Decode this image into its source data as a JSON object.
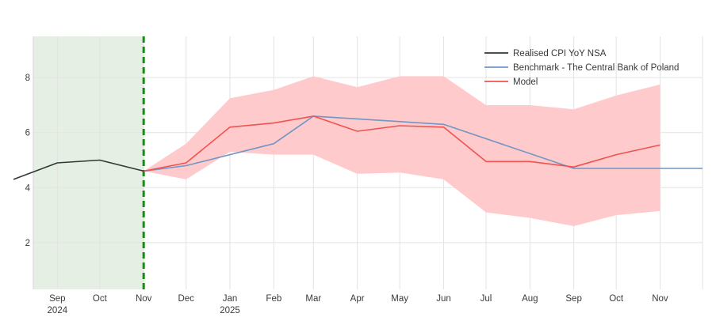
{
  "chart_data": {
    "type": "line",
    "title": "",
    "xlabel": "",
    "ylabel": "",
    "ylim": [
      0.3,
      9.5
    ],
    "yticks": [
      2,
      4,
      6,
      8
    ],
    "grid": true,
    "legend_position": "top-right",
    "x": [
      "2024-08",
      "2024-09",
      "2024-10",
      "2024-11",
      "2024-12",
      "2025-01",
      "2025-02",
      "2025-03",
      "2025-04",
      "2025-05",
      "2025-06",
      "2025-07",
      "2025-08",
      "2025-09",
      "2025-10",
      "2025-11",
      "2025-12"
    ],
    "month_ticks": [
      {
        "month": "2024-09",
        "label": "Sep",
        "year": "2024"
      },
      {
        "month": "2024-10",
        "label": "Oct",
        "year": ""
      },
      {
        "month": "2024-11",
        "label": "Nov",
        "year": ""
      },
      {
        "month": "2024-12",
        "label": "Dec",
        "year": ""
      },
      {
        "month": "2025-01",
        "label": "Jan",
        "year": "2025"
      },
      {
        "month": "2025-02",
        "label": "Feb",
        "year": ""
      },
      {
        "month": "2025-03",
        "label": "Mar",
        "year": ""
      },
      {
        "month": "2025-04",
        "label": "Apr",
        "year": ""
      },
      {
        "month": "2025-05",
        "label": "May",
        "year": ""
      },
      {
        "month": "2025-06",
        "label": "Jun",
        "year": ""
      },
      {
        "month": "2025-07",
        "label": "Jul",
        "year": ""
      },
      {
        "month": "2025-08",
        "label": "Aug",
        "year": ""
      },
      {
        "month": "2025-09",
        "label": "Sep",
        "year": ""
      },
      {
        "month": "2025-10",
        "label": "Oct",
        "year": ""
      },
      {
        "month": "2025-11",
        "label": "Nov",
        "year": ""
      }
    ],
    "shaded_region": {
      "from": "2024-08",
      "to": "2024-11",
      "color": "#e6efe3"
    },
    "forecast_start_marker": {
      "at": "2024-11",
      "color": "#1a8a1a",
      "style": "dashed"
    },
    "series": [
      {
        "name": "Realised CPI YoY NSA",
        "color": "#2f3a36",
        "points": [
          [
            "2024-08",
            4.3
          ],
          [
            "2024-09",
            4.9
          ],
          [
            "2024-10",
            5.0
          ],
          [
            "2024-11",
            4.6
          ]
        ]
      },
      {
        "name": "Benchmark - The Central Bank of Poland",
        "color": "#6f96c4",
        "points": [
          [
            "2024-11",
            4.6
          ],
          [
            "2024-12",
            4.8
          ],
          [
            "2025-02",
            5.6
          ],
          [
            "2025-03",
            6.6
          ],
          [
            "2025-06",
            6.3
          ],
          [
            "2025-09",
            4.7
          ],
          [
            "2025-12",
            4.7
          ]
        ]
      },
      {
        "name": "Model",
        "color": "#ef5350",
        "points": [
          [
            "2024-11",
            4.6
          ],
          [
            "2024-12",
            4.9
          ],
          [
            "2025-01",
            6.2
          ],
          [
            "2025-02",
            6.35
          ],
          [
            "2025-03",
            6.6
          ],
          [
            "2025-04",
            6.05
          ],
          [
            "2025-05",
            6.25
          ],
          [
            "2025-06",
            6.2
          ],
          [
            "2025-07",
            4.95
          ],
          [
            "2025-08",
            4.95
          ],
          [
            "2025-09",
            4.75
          ],
          [
            "2025-10",
            5.2
          ],
          [
            "2025-11",
            5.55
          ]
        ]
      }
    ],
    "band": {
      "name": "Model interval",
      "color": "#ffc7c9",
      "upper": [
        [
          "2024-11",
          4.6
        ],
        [
          "2024-12",
          5.6
        ],
        [
          "2025-01",
          7.25
        ],
        [
          "2025-02",
          7.55
        ],
        [
          "2025-03",
          8.05
        ],
        [
          "2025-04",
          7.65
        ],
        [
          "2025-05",
          8.05
        ],
        [
          "2025-06",
          8.05
        ],
        [
          "2025-07",
          7.0
        ],
        [
          "2025-08",
          7.0
        ],
        [
          "2025-09",
          6.85
        ],
        [
          "2025-10",
          7.35
        ],
        [
          "2025-11",
          7.75
        ]
      ],
      "lower": [
        [
          "2024-11",
          4.6
        ],
        [
          "2024-12",
          4.3
        ],
        [
          "2025-01",
          5.3
        ],
        [
          "2025-02",
          5.2
        ],
        [
          "2025-03",
          5.2
        ],
        [
          "2025-04",
          4.5
        ],
        [
          "2025-05",
          4.55
        ],
        [
          "2025-06",
          4.3
        ],
        [
          "2025-07",
          3.1
        ],
        [
          "2025-08",
          2.9
        ],
        [
          "2025-09",
          2.6
        ],
        [
          "2025-10",
          3.0
        ],
        [
          "2025-11",
          3.15
        ]
      ]
    }
  }
}
